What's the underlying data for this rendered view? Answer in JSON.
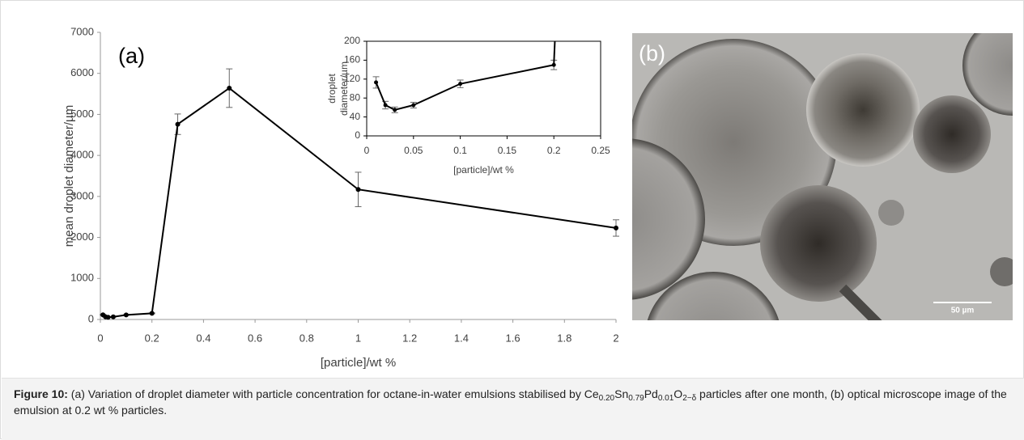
{
  "chart_data": [
    {
      "type": "line",
      "annotation": "(a)",
      "x": [
        0.01,
        0.02,
        0.03,
        0.05,
        0.1,
        0.2,
        0.3,
        0.5,
        1,
        2
      ],
      "series": [
        {
          "color": "#000000",
          "values": [
            113,
            65,
            55,
            65,
            110,
            150,
            4760,
            5640,
            3170,
            2230
          ],
          "errors": [
            12,
            8,
            6,
            6,
            8,
            10,
            250,
            470,
            420,
            200
          ]
        }
      ],
      "xlim": [
        0,
        2
      ],
      "xticks": [
        0,
        0.2,
        0.4,
        0.6,
        0.8,
        1,
        1.2,
        1.4,
        1.6,
        1.8,
        2
      ],
      "ylim": [
        0,
        7000
      ],
      "yticks": [
        0,
        1000,
        2000,
        3000,
        4000,
        5000,
        6000,
        7000
      ],
      "xlabel": "[particle]/wt %",
      "ylabel": "mean droplet diameter/µm"
    },
    {
      "type": "line",
      "x": [
        0.01,
        0.02,
        0.03,
        0.05,
        0.1,
        0.2
      ],
      "series": [
        {
          "color": "#000000",
          "values": [
            113,
            65,
            55,
            65,
            110,
            150
          ],
          "errors": [
            12,
            8,
            6,
            6,
            8,
            10
          ]
        }
      ],
      "xlim": [
        0,
        0.25
      ],
      "xticks": [
        0,
        0.05,
        0.1,
        0.15,
        0.2,
        0.25
      ],
      "ylim": [
        0,
        200
      ],
      "yticks": [
        0,
        40,
        80,
        120,
        160,
        200
      ],
      "xlabel": "[particle]/wt %",
      "ylabel": [
        "droplet",
        "diameter/µm"
      ]
    }
  ],
  "image": {
    "label": "(b)",
    "scale_bar": "50 µm"
  },
  "caption": {
    "label": "Figure 10:",
    "text_before": " (a) Variation of droplet diameter with particle concentration for octane-in-water emulsions stabilised by ",
    "formula": [
      "Ce",
      "0.20",
      "Sn",
      "0.79",
      "Pd",
      "0.01",
      "O",
      "2−δ"
    ],
    "text_after": " particles after one month, (b) optical microscope image of the emulsion at 0.2 wt % particles."
  }
}
